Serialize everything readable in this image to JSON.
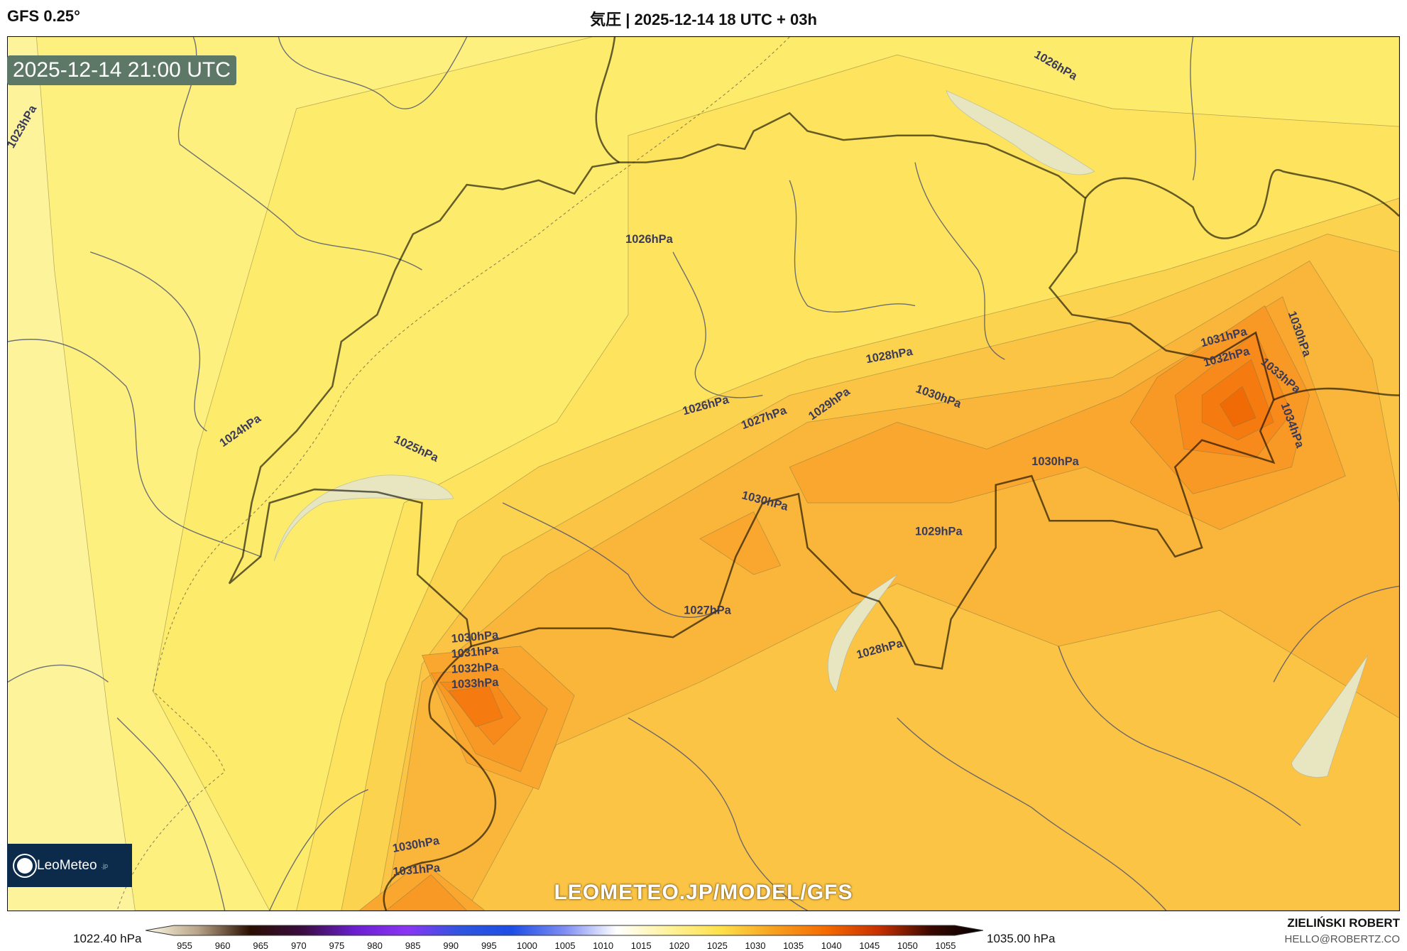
{
  "header": {
    "model": "GFS 0.25°",
    "title": "気圧 | 2025-12-14 18 UTC + 03h"
  },
  "map": {
    "valid_time": "2025-12-14 21:00 UTC",
    "watermark": "LEOMETEO.JP/MODEL/GFS",
    "logo": {
      "name": "LeoMeteo",
      "suffix": ".jp"
    },
    "contour_labels": [
      "1026hPa",
      "1023hPa",
      "1026hPa",
      "1024hPa",
      "1025hPa",
      "1026hPa",
      "1027hPa",
      "1028hPa",
      "1029hPa",
      "1030hPa",
      "1030hPa",
      "1030hPa",
      "1029hPa",
      "1027hPa",
      "1028hPa",
      "1030hPa",
      "1031hPa",
      "1032hPa",
      "1033hPa",
      "1031hPa",
      "1032hPa",
      "1030hPa",
      "1033hPa",
      "1034hPa",
      "1030hPa",
      "1031hPa"
    ]
  },
  "colorbar": {
    "min_label": "1022.40 hPa",
    "max_label": "1035.00 hPa",
    "ticks": [
      "955",
      "960",
      "965",
      "970",
      "975",
      "980",
      "985",
      "990",
      "995",
      "1000",
      "1005",
      "1010",
      "1015",
      "1020",
      "1025",
      "1030",
      "1035",
      "1040",
      "1045",
      "1050",
      "1055"
    ],
    "colors": [
      "#fffbe8",
      "#b8a488",
      "#2a0e00",
      "#3a0c40",
      "#6a1fd0",
      "#8a35f5",
      "#2f55e0",
      "#1e4de6",
      "#7d8cf2",
      "#ffffff",
      "#fff29a",
      "#fde04a",
      "#f7a020",
      "#f56a00",
      "#c83000",
      "#3a0800",
      "#000000"
    ]
  },
  "footer": {
    "author": "ZIELIŃSKI ROBERT",
    "email": "HELLO@ROBERTZ.CO"
  }
}
